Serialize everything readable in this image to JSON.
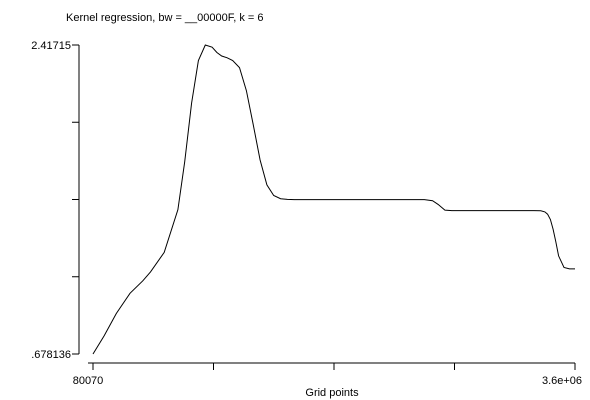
{
  "chart_data": {
    "type": "line",
    "title": "Kernel regression, bw = __00000F, k = 6",
    "xlabel": "Grid points",
    "ylabel": "",
    "xlim": [
      80070,
      3600000
    ],
    "ylim": [
      0.678136,
      2.41715
    ],
    "x_tick_labels": [
      "80070",
      "3.6e+06"
    ],
    "y_tick_labels": [
      "2.41715",
      ".678136"
    ],
    "x_ticks": [
      80070,
      960052,
      1840035,
      2720017,
      3600000
    ],
    "y_ticks": [
      0.678136,
      1.112889,
      1.547643,
      1.982396,
      2.41715
    ],
    "grid": false,
    "series": [
      {
        "x": [
          80070,
          161000,
          250000,
          350000,
          444000,
          500000,
          600000,
          700000,
          750000,
          800000,
          850000,
          900000,
          950000,
          985000,
          1020000,
          1060000,
          1100000,
          1150000,
          1200000,
          1250000,
          1300000,
          1350000,
          1400000,
          1450000,
          1500000,
          1550000,
          1600000,
          1700000,
          1800000,
          2000000,
          2200000,
          2400000,
          2500000,
          2560000,
          2600000,
          2650000,
          2700000,
          2800000,
          2900000,
          3000000,
          3100000,
          3200000,
          3300000,
          3350000,
          3380000,
          3400000,
          3420000,
          3440000,
          3460000,
          3480000,
          3520000,
          3560000,
          3600000
        ],
        "y": [
          0.678136,
          0.78,
          0.906,
          1.02,
          1.09,
          1.14,
          1.25,
          1.49,
          1.76,
          2.09,
          2.33,
          2.417,
          2.405,
          2.375,
          2.355,
          2.345,
          2.33,
          2.29,
          2.16,
          1.97,
          1.77,
          1.63,
          1.57,
          1.552,
          1.548,
          1.547,
          1.547,
          1.547,
          1.547,
          1.547,
          1.547,
          1.547,
          1.547,
          1.541,
          1.52,
          1.488,
          1.485,
          1.485,
          1.485,
          1.485,
          1.485,
          1.485,
          1.485,
          1.484,
          1.478,
          1.465,
          1.435,
          1.38,
          1.31,
          1.23,
          1.165,
          1.157,
          1.157
        ]
      }
    ]
  }
}
